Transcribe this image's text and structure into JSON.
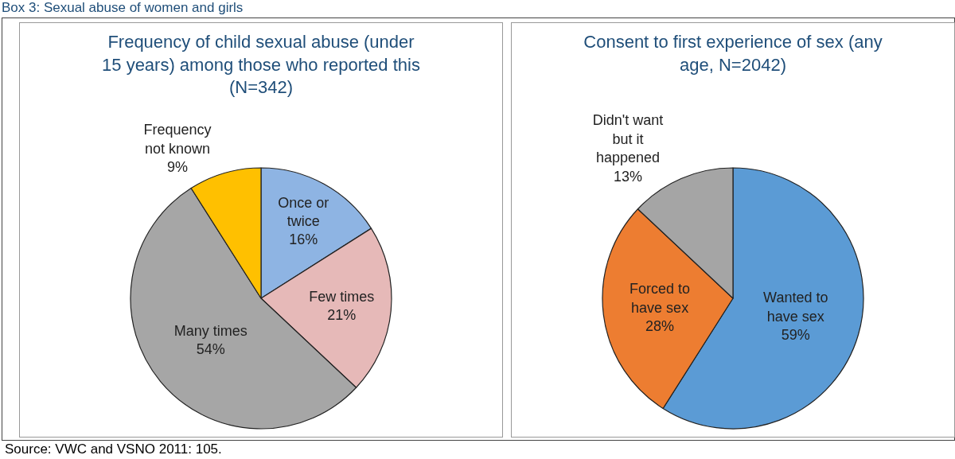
{
  "chart_data": [
    {
      "type": "pie",
      "title": "Frequency of child sexual abuse (under 15 years) among those who reported this (N=342)",
      "annotations": [
        "Box 3: Sexual abuse of women and girls",
        "Source: VWC and VSNO 2011: 105."
      ],
      "categories": [
        "Once or twice",
        "Few times",
        "Many times",
        "Frequency not known"
      ],
      "values": [
        16,
        21,
        54,
        9
      ],
      "value_labels": [
        "16%",
        "21%",
        "54%",
        "9%"
      ],
      "colors": [
        "#8eb4e3",
        "#e6b9b8",
        "#a6a6a6",
        "#ffc000"
      ]
    },
    {
      "type": "pie",
      "title": "Consent to first experience of sex (any age, N=2042)",
      "categories": [
        "Wanted to have sex",
        "Forced to have sex",
        "Didn't want but it happened"
      ],
      "values": [
        59,
        28,
        13
      ],
      "value_labels": [
        "59%",
        "28%",
        "13%"
      ],
      "colors": [
        "#5b9bd5",
        "#ed7d31",
        "#a5a5a5"
      ]
    }
  ]
}
